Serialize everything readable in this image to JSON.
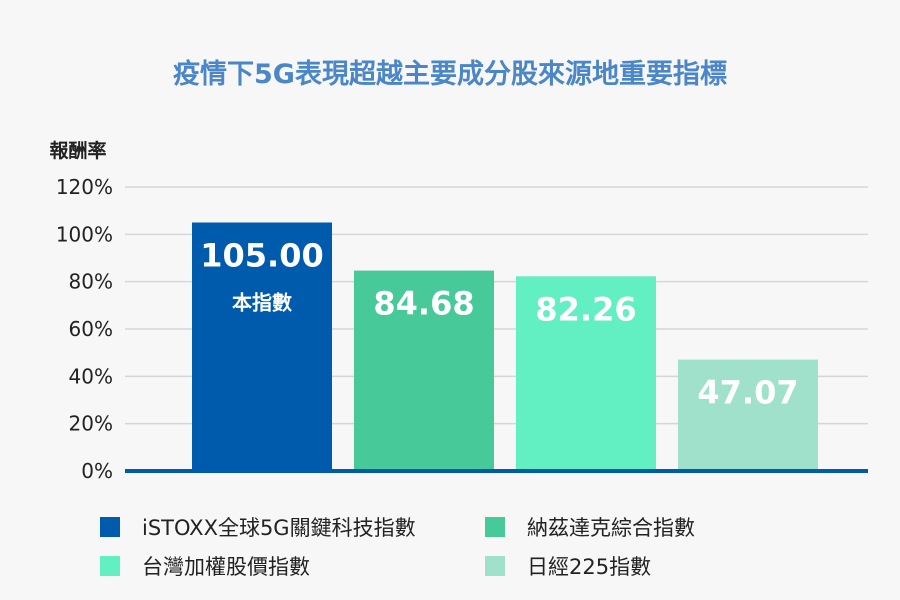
{
  "chart_data": {
    "type": "bar",
    "title": "疫情下5G表現超越主要成分股來源地重要指標",
    "ylabel": "報酬率",
    "ylim": [
      0,
      120
    ],
    "yticks": [
      "0%",
      "20%",
      "40%",
      "60%",
      "80%",
      "100%",
      "120%"
    ],
    "grid": true,
    "legend_position": "bottom",
    "series": [
      {
        "name": "iSTOXX全球5G關鍵科技指數",
        "value": 105.0,
        "label": "105.00",
        "sublabel": "本指數",
        "color": "#005bac"
      },
      {
        "name": "納茲達克綜合指數",
        "value": 84.68,
        "label": "84.68",
        "color": "#48c99a"
      },
      {
        "name": "台灣加權股價指數",
        "value": 82.26,
        "label": "82.26",
        "color": "#62efc2"
      },
      {
        "name": "日經225指數",
        "value": 47.07,
        "label": "47.07",
        "color": "#9fe1cb"
      }
    ]
  }
}
